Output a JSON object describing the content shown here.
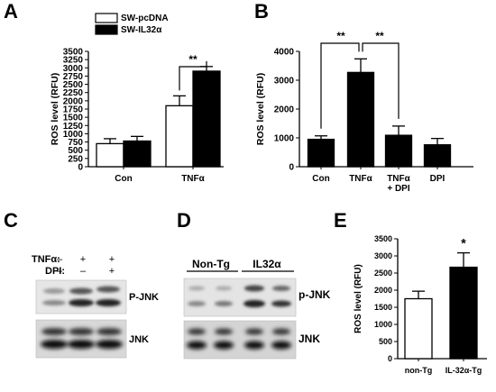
{
  "panels": {
    "A": "A",
    "B": "B",
    "C": "C",
    "D": "D",
    "E": "E"
  },
  "chart_data": [
    {
      "panel": "A",
      "type": "bar",
      "ylabel": "ROS level (RFU)",
      "ylim": [
        0,
        3500
      ],
      "yticks": [
        0,
        250,
        500,
        750,
        1000,
        1250,
        1500,
        1750,
        2000,
        2250,
        2500,
        2750,
        3000,
        3250,
        3500
      ],
      "ytick_labels": [
        "0",
        "250",
        "500",
        "750",
        "1000",
        "1250",
        "1500",
        "1750",
        "2000",
        "2250",
        "2500",
        "2750",
        "3000",
        "3250",
        "3500"
      ],
      "categories": [
        "Con",
        "TNFα"
      ],
      "series": [
        {
          "name": "SW-pcDNA",
          "color": "#ffffff",
          "values": [
            700,
            1850
          ],
          "errors": [
            150,
            300
          ]
        },
        {
          "name": "SW-IL32α",
          "color": "#000000",
          "values": [
            780,
            2900
          ],
          "errors": [
            140,
            140
          ]
        }
      ],
      "significance": [
        {
          "label": "**"
        }
      ],
      "legend": "top-left"
    },
    {
      "panel": "B",
      "type": "bar",
      "ylabel": "ROS level (RFU)",
      "ylim": [
        0,
        4000
      ],
      "yticks": [
        0,
        1000,
        2000,
        3000,
        4000
      ],
      "ytick_labels": [
        "0",
        "1000",
        "2000",
        "3000",
        "4000"
      ],
      "categories": [
        "Con",
        "TNFα",
        "TNFα\n+ DPI",
        "DPI"
      ],
      "category_lines": [
        [
          "Con"
        ],
        [
          "TNFα"
        ],
        [
          "TNFα",
          "+ DPI"
        ],
        [
          "DPI"
        ]
      ],
      "values": [
        950,
        3270,
        1090,
        760
      ],
      "errors": [
        120,
        470,
        320,
        220
      ],
      "color": "#000000",
      "significance": [
        {
          "label": "**"
        },
        {
          "label": "**"
        }
      ]
    },
    {
      "panel": "E",
      "type": "bar",
      "ylabel": "ROS level (RFU)",
      "ylim": [
        0,
        3500
      ],
      "yticks": [
        0,
        500,
        1000,
        1500,
        2000,
        2500,
        3000,
        3500
      ],
      "ytick_labels": [
        "0",
        "500",
        "1000",
        "1500",
        "2000",
        "2500",
        "3000",
        "3500"
      ],
      "categories": [
        "non-Tg",
        "IL-32α-Tg"
      ],
      "values": [
        1750,
        2670
      ],
      "errors": [
        220,
        420
      ],
      "colors": [
        "#ffffff",
        "#000000"
      ],
      "significance": [
        {
          "label": "*"
        }
      ]
    }
  ],
  "blotC": {
    "rows": [
      {
        "label": "TNFα:",
        "marks": [
          "–",
          "+",
          "+"
        ]
      },
      {
        "label": "DPI:",
        "marks": [
          "–",
          "–",
          "+"
        ]
      }
    ],
    "bands": [
      "P-JNK",
      "JNK"
    ]
  },
  "blotD": {
    "groups": [
      "Non-Tg",
      "IL32α"
    ],
    "bands": [
      "p-JNK",
      "JNK"
    ]
  }
}
